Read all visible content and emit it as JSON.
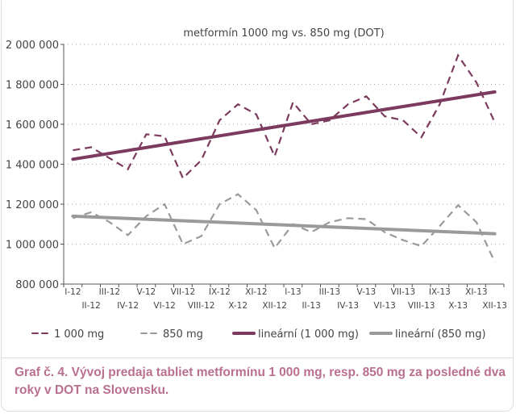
{
  "chart_data": {
    "type": "line",
    "title": "metformín 1000 mg vs. 850 mg (DOT)",
    "xlabel": "",
    "ylabel": "",
    "ylim": [
      800000,
      2000000
    ],
    "yticks": [
      800000,
      1000000,
      1200000,
      1400000,
      1600000,
      1800000,
      2000000
    ],
    "ytick_labels": [
      "800 000",
      "1 000 000",
      "1 200 000",
      "1 400 000",
      "1 600 000",
      "1 800 000",
      "2 000 000"
    ],
    "grid": "horizontal dotted",
    "legend_position": "bottom",
    "categories": [
      "I-12",
      "II-12",
      "III-12",
      "IV-12",
      "V-12",
      "VI-12",
      "VII-12",
      "VIII-12",
      "IX-12",
      "X-12",
      "XI-12",
      "XII-12",
      "I-13",
      "II-13",
      "III-13",
      "IV-13",
      "V-13",
      "VI-13",
      "VII-13",
      "VIII-13",
      "IX-13",
      "X-13",
      "XI-13",
      "XII-13"
    ],
    "series": [
      {
        "name": "1 000 mg",
        "style": "dashed",
        "color": "#7b3a5e",
        "values": [
          1470000,
          1485000,
          1430000,
          1375000,
          1550000,
          1540000,
          1330000,
          1420000,
          1620000,
          1700000,
          1650000,
          1440000,
          1710000,
          1600000,
          1620000,
          1700000,
          1740000,
          1640000,
          1620000,
          1535000,
          1700000,
          1945000,
          1810000,
          1610000
        ]
      },
      {
        "name": "850 mg",
        "style": "dashed",
        "color": "#9a9a9a",
        "values": [
          1130000,
          1160000,
          1110000,
          1045000,
          1140000,
          1200000,
          1000000,
          1040000,
          1200000,
          1250000,
          1170000,
          980000,
          1100000,
          1060000,
          1110000,
          1130000,
          1125000,
          1060000,
          1020000,
          990000,
          1090000,
          1195000,
          1110000,
          910000
        ]
      },
      {
        "name": "lineární (1 000 mg)",
        "style": "solid-thick",
        "color": "#7b3a5e",
        "trend": [
          1425000,
          1762000
        ]
      },
      {
        "name": "lineární (850 mg)",
        "style": "solid-thick",
        "color": "#9a9a9a",
        "trend": [
          1140000,
          1052000
        ]
      }
    ]
  },
  "caption": "Graf č. 4. Vývoj predaja tabliet metformínu 1 000 mg, resp. 850 mg za posledné dva roky v DOT na Slovensku."
}
